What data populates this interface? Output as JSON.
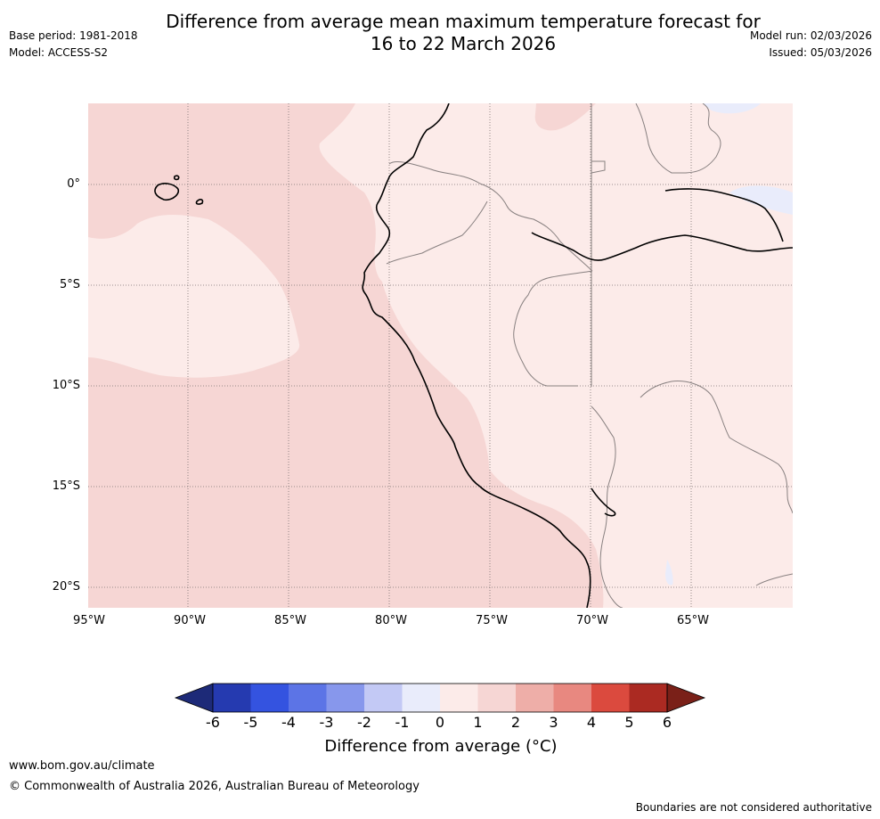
{
  "title": {
    "line1": "Difference from average mean maximum temperature forecast for",
    "line2": "16 to 22 March 2026"
  },
  "meta": {
    "base_period": "Base period: 1981-2018",
    "model": "Model: ACCESS-S2",
    "model_run": "Model run: 02/03/2026",
    "issued": "Issued: 05/03/2026"
  },
  "map": {
    "lat_ticks": [
      "0°",
      "5°S",
      "10°S",
      "15°S",
      "20°S"
    ],
    "lon_ticks": [
      "95°W",
      "90°W",
      "85°W",
      "80°W",
      "75°W",
      "70°W",
      "65°W"
    ]
  },
  "colorbar": {
    "labels": [
      "-6",
      "-5",
      "-4",
      "-3",
      "-2",
      "-1",
      "0",
      "1",
      "2",
      "3",
      "4",
      "5",
      "6"
    ],
    "colors": [
      "#253ab0",
      "#3453e0",
      "#5c74e6",
      "#8797ec",
      "#c3c9f5",
      "#e9ecfb",
      "#fcebe9",
      "#f6d6d4",
      "#eeaea8",
      "#e88880",
      "#db4a3e",
      "#ab2a22"
    ],
    "under_color": "#1d2a78",
    "over_color": "#7a2018",
    "axis_label": "Difference from average (°C)"
  },
  "footer": {
    "url": "www.bom.gov.au/climate",
    "copyright": "© Commonwealth of Australia 2026, Australian Bureau of Meteorology",
    "disclaimer": "Boundaries are not considered authoritative"
  },
  "colors": {
    "anomaly_0_1": "#fcebe9",
    "anomaly_1_2": "#f6d6d4",
    "anomaly_neg1_0": "#e9ecfb",
    "coastline": "#000000",
    "border": "#888080",
    "gridline": "#7a7070"
  }
}
